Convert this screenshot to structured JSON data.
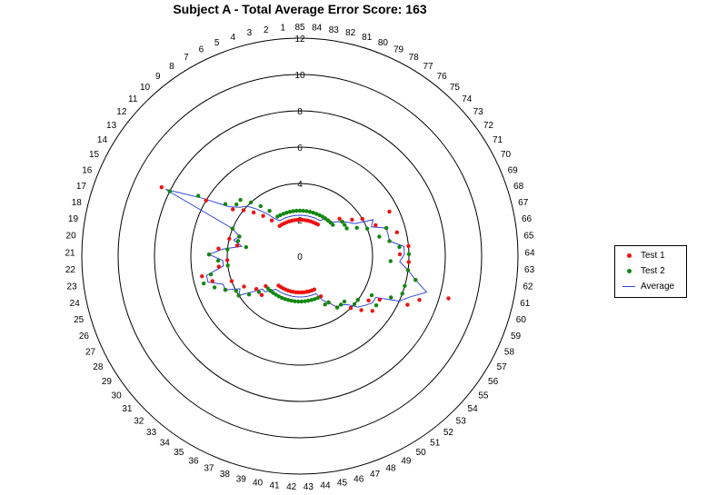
{
  "chart_data": {
    "type": "scatter",
    "title": "Subject A - Total Average Error Score: 163",
    "angular_categories": [
      "1",
      "2",
      "3",
      "4",
      "5",
      "6",
      "7",
      "8",
      "9",
      "10",
      "11",
      "12",
      "13",
      "14",
      "15",
      "16",
      "17",
      "18",
      "19",
      "20",
      "21",
      "22",
      "23",
      "24",
      "25",
      "26",
      "27",
      "28",
      "29",
      "30",
      "31",
      "32",
      "33",
      "34",
      "35",
      "36",
      "37",
      "38",
      "39",
      "40",
      "41",
      "42",
      "43",
      "44",
      "45",
      "46",
      "47",
      "48",
      "49",
      "50",
      "51",
      "52",
      "53",
      "54",
      "55",
      "56",
      "57",
      "58",
      "59",
      "60",
      "61",
      "62",
      "63",
      "64",
      "65",
      "66",
      "67",
      "68",
      "69",
      "70",
      "71",
      "72",
      "73",
      "74",
      "75",
      "76",
      "77",
      "78",
      "79",
      "80",
      "81",
      "82",
      "83",
      "84",
      "85"
    ],
    "radial_ticks": [
      "0",
      "2",
      "4",
      "6",
      "8",
      "10",
      "12"
    ],
    "rlim": [
      0,
      12
    ],
    "grid": true,
    "legend_position": "right",
    "series": [
      {
        "name": "Test 1",
        "color": "#ee1111",
        "values": [
          2,
          2,
          2,
          2,
          2,
          2,
          2,
          2,
          2.5,
          3,
          3.5,
          4,
          4.5,
          6,
          8.5,
          4,
          3.5,
          4,
          3.5,
          4.5,
          5,
          4,
          4.5,
          5.5,
          5,
          4,
          4.5,
          3.5,
          4,
          3,
          2.5,
          3,
          2.5,
          2,
          2,
          2,
          2,
          2,
          2,
          2,
          2,
          2,
          2,
          2,
          2,
          2,
          2,
          2,
          2.5,
          3,
          3.5,
          3.5,
          4,
          4.5,
          5,
          4.5,
          5,
          6.5,
          7,
          8.5,
          6.5,
          6,
          6,
          5.5,
          6,
          5,
          5.5,
          5,
          4.5,
          5.5,
          4,
          3.5,
          3,
          3,
          2.5,
          2.5,
          2.5,
          2,
          2,
          2,
          2,
          2,
          2,
          2,
          2
        ]
      },
      {
        "name": "Test 2",
        "color": "#118811",
        "values": [
          2.5,
          2.5,
          2.5,
          2.5,
          2.5,
          2.5,
          2.5,
          3,
          3.5,
          4,
          4.5,
          4.5,
          5,
          6.5,
          8,
          4,
          3.5,
          3.5,
          3,
          4,
          5,
          4.5,
          4,
          5,
          5.5,
          5,
          4.5,
          4,
          4,
          3.5,
          3,
          2.5,
          2.5,
          2.5,
          2.5,
          2.5,
          2.5,
          2.5,
          2.5,
          2.5,
          2.5,
          2.5,
          2.5,
          2.5,
          2.5,
          2.5,
          2.5,
          2.5,
          3,
          3,
          3.5,
          3.5,
          3.5,
          4,
          4,
          5,
          4.5,
          5.5,
          6,
          6,
          6.5,
          6,
          5,
          6,
          5.5,
          5,
          4.5,
          5,
          4,
          3.5,
          3,
          3,
          3,
          2.5,
          2.5,
          2.5,
          2.5,
          2.5,
          2.5,
          2.5,
          2.5,
          2.5,
          2.5,
          2.5,
          2.5
        ]
      },
      {
        "name": "Average",
        "color": "#3344dd",
        "values": [
          2.25,
          2.25,
          2.25,
          2.25,
          2.25,
          2.25,
          2.25,
          2.5,
          3,
          3.5,
          4,
          4.25,
          4.75,
          6.25,
          8.25,
          4,
          3.5,
          3.75,
          3.25,
          4.25,
          5,
          4.25,
          4.25,
          5.25,
          5.25,
          4.5,
          4.5,
          3.75,
          4,
          3.25,
          2.75,
          2.75,
          2.5,
          2.25,
          2.25,
          2.25,
          2.25,
          2.25,
          2.25,
          2.25,
          2.25,
          2.25,
          2.25,
          2.25,
          2.25,
          2.25,
          2.25,
          2.25,
          2.75,
          3,
          3.5,
          3.5,
          3.75,
          4.25,
          4.5,
          4.75,
          4.75,
          6,
          6.5,
          7.25,
          6.5,
          6,
          5.5,
          5.75,
          5.75,
          5,
          5,
          5,
          4.25,
          4.5,
          3.5,
          3.25,
          3,
          2.75,
          2.5,
          2.5,
          2.5,
          2.25,
          2.25,
          2.25,
          2.25,
          2.25,
          2.25,
          2.25,
          2.25
        ]
      }
    ]
  }
}
